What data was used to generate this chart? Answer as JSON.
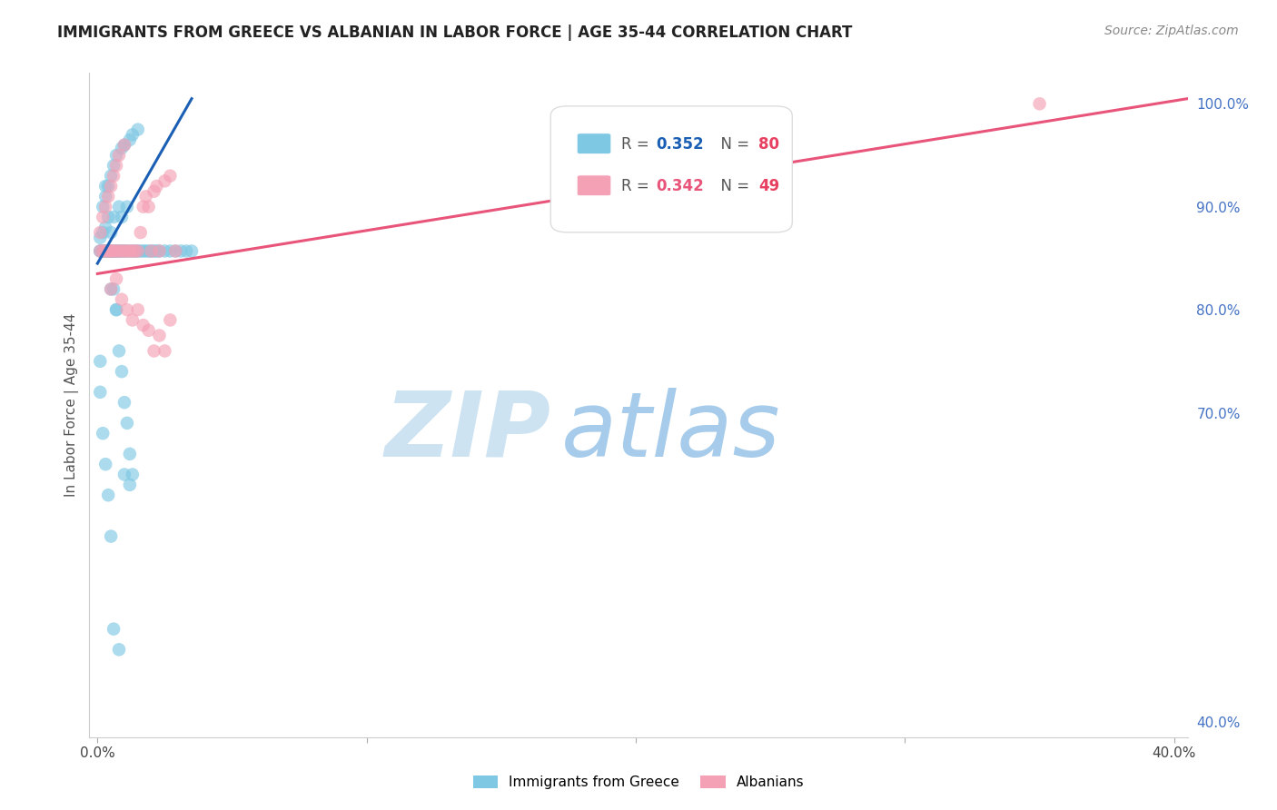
{
  "title": "IMMIGRANTS FROM GREECE VS ALBANIAN IN LABOR FORCE | AGE 35-44 CORRELATION CHART",
  "source": "Source: ZipAtlas.com",
  "ylabel": "In Labor Force | Age 35-44",
  "R1": 0.352,
  "N1": 80,
  "R2": 0.342,
  "N2": 49,
  "color1": "#7ec8e3",
  "color2": "#f4a0b5",
  "line_color1": "#1a5fb4",
  "line_color2": "#e8547a",
  "legend_label_1": "Immigrants from Greece",
  "legend_label_2": "Albanians",
  "watermark_zip": "ZIP",
  "watermark_atlas": "atlas",
  "watermark_color_zip": "#c8dff0",
  "watermark_color_atlas": "#90c0e0",
  "xlim": [
    -0.003,
    0.405
  ],
  "ylim": [
    0.385,
    1.03
  ],
  "greece_x": [
    0.001,
    0.001,
    0.001,
    0.002,
    0.002,
    0.002,
    0.002,
    0.003,
    0.003,
    0.003,
    0.003,
    0.003,
    0.004,
    0.004,
    0.004,
    0.004,
    0.005,
    0.005,
    0.005,
    0.005,
    0.005,
    0.006,
    0.006,
    0.006,
    0.006,
    0.007,
    0.007,
    0.007,
    0.008,
    0.008,
    0.008,
    0.009,
    0.009,
    0.009,
    0.01,
    0.01,
    0.01,
    0.011,
    0.011,
    0.012,
    0.012,
    0.013,
    0.013,
    0.014,
    0.015,
    0.015,
    0.016,
    0.017,
    0.018,
    0.019,
    0.02,
    0.021,
    0.022,
    0.023,
    0.025,
    0.027,
    0.029,
    0.031,
    0.033,
    0.035,
    0.001,
    0.001,
    0.002,
    0.003,
    0.004,
    0.005,
    0.006,
    0.007,
    0.008,
    0.009,
    0.01,
    0.011,
    0.012,
    0.013,
    0.006,
    0.008,
    0.01,
    0.012,
    0.005,
    0.007
  ],
  "greece_y": [
    0.857,
    0.857,
    0.87,
    0.857,
    0.857,
    0.875,
    0.9,
    0.857,
    0.857,
    0.88,
    0.91,
    0.92,
    0.857,
    0.857,
    0.89,
    0.92,
    0.857,
    0.857,
    0.857,
    0.875,
    0.93,
    0.857,
    0.857,
    0.89,
    0.94,
    0.857,
    0.857,
    0.95,
    0.857,
    0.857,
    0.9,
    0.857,
    0.89,
    0.957,
    0.857,
    0.857,
    0.96,
    0.857,
    0.9,
    0.857,
    0.965,
    0.857,
    0.97,
    0.857,
    0.857,
    0.975,
    0.857,
    0.857,
    0.857,
    0.857,
    0.857,
    0.857,
    0.857,
    0.857,
    0.857,
    0.857,
    0.857,
    0.857,
    0.857,
    0.857,
    0.75,
    0.72,
    0.68,
    0.65,
    0.62,
    0.58,
    0.82,
    0.8,
    0.76,
    0.74,
    0.71,
    0.69,
    0.66,
    0.64,
    0.49,
    0.47,
    0.64,
    0.63,
    0.82,
    0.8
  ],
  "albanian_x": [
    0.001,
    0.001,
    0.002,
    0.002,
    0.003,
    0.003,
    0.004,
    0.004,
    0.005,
    0.005,
    0.005,
    0.006,
    0.006,
    0.007,
    0.007,
    0.008,
    0.008,
    0.009,
    0.01,
    0.01,
    0.011,
    0.012,
    0.013,
    0.014,
    0.015,
    0.016,
    0.017,
    0.018,
    0.019,
    0.02,
    0.021,
    0.022,
    0.023,
    0.025,
    0.027,
    0.029,
    0.005,
    0.007,
    0.009,
    0.011,
    0.013,
    0.015,
    0.017,
    0.019,
    0.021,
    0.023,
    0.025,
    0.027,
    0.35
  ],
  "albanian_y": [
    0.857,
    0.875,
    0.857,
    0.89,
    0.857,
    0.9,
    0.857,
    0.91,
    0.857,
    0.857,
    0.92,
    0.857,
    0.93,
    0.857,
    0.94,
    0.857,
    0.95,
    0.857,
    0.857,
    0.96,
    0.857,
    0.857,
    0.857,
    0.857,
    0.857,
    0.875,
    0.9,
    0.91,
    0.9,
    0.857,
    0.915,
    0.92,
    0.857,
    0.925,
    0.93,
    0.857,
    0.82,
    0.83,
    0.81,
    0.8,
    0.79,
    0.8,
    0.785,
    0.78,
    0.76,
    0.775,
    0.76,
    0.79,
    1.0
  ],
  "blue_line_x": [
    0.0,
    0.035
  ],
  "blue_line_y": [
    0.845,
    1.005
  ],
  "pink_line_x": [
    0.0,
    0.405
  ],
  "pink_line_y": [
    0.835,
    1.005
  ]
}
